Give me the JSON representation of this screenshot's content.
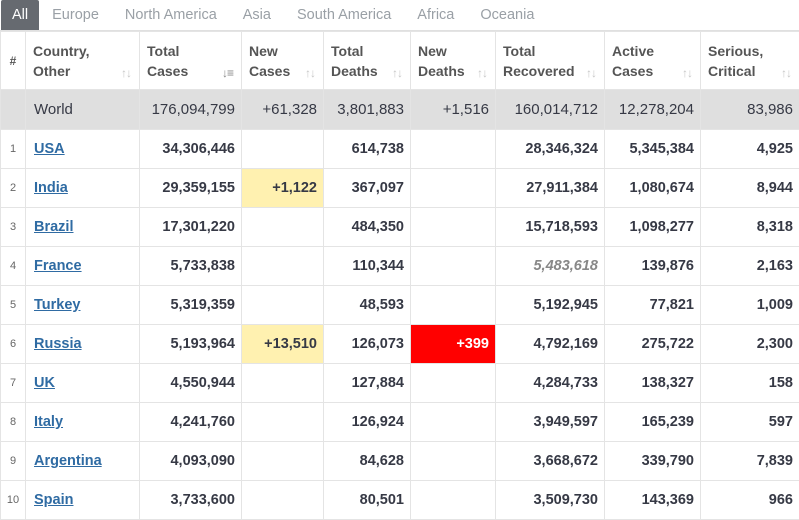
{
  "tabs": [
    {
      "label": "All",
      "active": true
    },
    {
      "label": "Europe",
      "active": false
    },
    {
      "label": "North America",
      "active": false
    },
    {
      "label": "Asia",
      "active": false
    },
    {
      "label": "South America",
      "active": false
    },
    {
      "label": "Africa",
      "active": false
    },
    {
      "label": "Oceania",
      "active": false
    }
  ],
  "headers": {
    "num": "#",
    "country": [
      "Country,",
      "Other"
    ],
    "total_cases": [
      "Total",
      "Cases"
    ],
    "new_cases": [
      "New",
      "Cases"
    ],
    "total_deaths": [
      "Total",
      "Deaths"
    ],
    "new_deaths": [
      "New",
      "Deaths"
    ],
    "total_recovered": [
      "Total",
      "Recovered"
    ],
    "active_cases": [
      "Active",
      "Cases"
    ],
    "serious": [
      "Serious,",
      "Critical"
    ]
  },
  "world": {
    "country": "World",
    "total_cases": "176,094,799",
    "new_cases": "+61,328",
    "total_deaths": "3,801,883",
    "new_deaths": "+1,516",
    "total_recovered": "160,014,712",
    "active_cases": "12,278,204",
    "serious": "83,986"
  },
  "rows": [
    {
      "rank": "1",
      "country": "USA",
      "total_cases": "34,306,446",
      "new_cases": "",
      "total_deaths": "614,738",
      "new_deaths": "",
      "total_recovered": "28,346,324",
      "active_cases": "5,345,384",
      "serious": "4,925"
    },
    {
      "rank": "2",
      "country": "India",
      "total_cases": "29,359,155",
      "new_cases": "+1,122",
      "total_deaths": "367,097",
      "new_deaths": "",
      "total_recovered": "27,911,384",
      "active_cases": "1,080,674",
      "serious": "8,944"
    },
    {
      "rank": "3",
      "country": "Brazil",
      "total_cases": "17,301,220",
      "new_cases": "",
      "total_deaths": "484,350",
      "new_deaths": "",
      "total_recovered": "15,718,593",
      "active_cases": "1,098,277",
      "serious": "8,318"
    },
    {
      "rank": "4",
      "country": "France",
      "total_cases": "5,733,838",
      "new_cases": "",
      "total_deaths": "110,344",
      "new_deaths": "",
      "total_recovered": "5,483,618",
      "active_cases": "139,876",
      "serious": "2,163"
    },
    {
      "rank": "5",
      "country": "Turkey",
      "total_cases": "5,319,359",
      "new_cases": "",
      "total_deaths": "48,593",
      "new_deaths": "",
      "total_recovered": "5,192,945",
      "active_cases": "77,821",
      "serious": "1,009"
    },
    {
      "rank": "6",
      "country": "Russia",
      "total_cases": "5,193,964",
      "new_cases": "+13,510",
      "total_deaths": "126,073",
      "new_deaths": "+399",
      "total_recovered": "4,792,169",
      "active_cases": "275,722",
      "serious": "2,300"
    },
    {
      "rank": "7",
      "country": "UK",
      "total_cases": "4,550,944",
      "new_cases": "",
      "total_deaths": "127,884",
      "new_deaths": "",
      "total_recovered": "4,284,733",
      "active_cases": "138,327",
      "serious": "158"
    },
    {
      "rank": "8",
      "country": "Italy",
      "total_cases": "4,241,760",
      "new_cases": "",
      "total_deaths": "126,924",
      "new_deaths": "",
      "total_recovered": "3,949,597",
      "active_cases": "165,239",
      "serious": "597"
    },
    {
      "rank": "9",
      "country": "Argentina",
      "total_cases": "4,093,090",
      "new_cases": "",
      "total_deaths": "84,628",
      "new_deaths": "",
      "total_recovered": "3,668,672",
      "active_cases": "339,790",
      "serious": "7,839"
    },
    {
      "rank": "10",
      "country": "Spain",
      "total_cases": "3,733,600",
      "new_cases": "",
      "total_deaths": "80,501",
      "new_deaths": "",
      "total_recovered": "3,509,730",
      "active_cases": "143,369",
      "serious": "966"
    }
  ],
  "colors": {
    "new_cases_highlight": "#fff1b0",
    "new_deaths_highlight": "#ff0000",
    "link": "#2f6ba3",
    "tab_active": "#666a70",
    "world_row": "#dfdfdf"
  },
  "icons": {
    "sort": "sort-arrows-icon"
  }
}
